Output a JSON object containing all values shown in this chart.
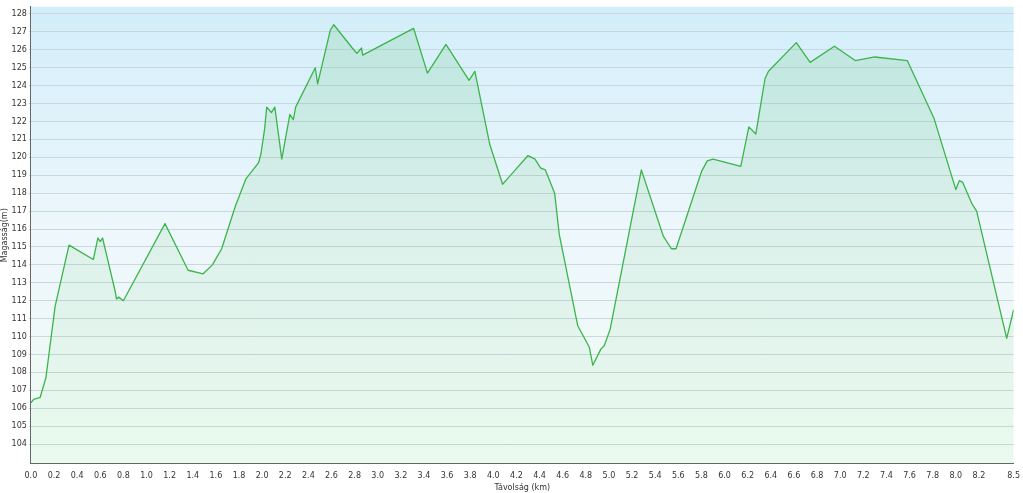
{
  "chart_data": {
    "type": "area",
    "xlabel": "Távolság (km)",
    "ylabel": "Magasság(m)",
    "xlim": [
      0,
      8.5
    ],
    "ylim": [
      102.9,
      128.4
    ],
    "xticks": [
      {
        "value": 0,
        "label": "0.0"
      },
      0.2,
      0.4,
      0.6,
      0.8,
      {
        "value": 1,
        "label": "1.0"
      },
      1.2,
      1.4,
      1.6,
      1.8,
      {
        "value": 2,
        "label": "2.0"
      },
      2.2,
      2.4,
      2.6,
      2.8,
      {
        "value": 3,
        "label": "3.0"
      },
      3.2,
      3.4,
      3.6,
      3.8,
      {
        "value": 4,
        "label": "4.0"
      },
      4.2,
      4.4,
      4.6,
      4.8,
      {
        "value": 5,
        "label": "5.0"
      },
      5.2,
      5.4,
      5.6,
      5.8,
      {
        "value": 6,
        "label": "6.0"
      },
      6.2,
      6.4,
      6.6,
      6.8,
      {
        "value": 7,
        "label": "7.0"
      },
      7.2,
      7.4,
      7.6,
      7.8,
      {
        "value": 8,
        "label": "8.0"
      },
      8.2,
      8.5
    ],
    "yticks": [
      104,
      105,
      106,
      107,
      108,
      109,
      110,
      111,
      112,
      113,
      114,
      115,
      116,
      117,
      118,
      119,
      120,
      121,
      122,
      123,
      124,
      125,
      126,
      127,
      128
    ],
    "grid": "y",
    "legend": false,
    "marker": "none",
    "x": [
      0,
      0.025,
      0.08,
      0.13,
      0.21,
      0.33,
      0.54,
      0.58,
      0.6,
      0.62,
      0.73,
      0.74,
      0.76,
      0.8,
      1.16,
      1.36,
      1.49,
      1.57,
      1.65,
      1.77,
      1.86,
      1.97,
      1.99,
      2.02,
      2.04,
      2.08,
      2.11,
      2.17,
      2.24,
      2.27,
      2.29,
      2.46,
      2.48,
      2.59,
      2.62,
      2.78,
      2.82,
      2.86,
      2.87,
      3.31,
      3.43,
      3.59,
      3.79,
      3.84,
      3.97,
      4.08,
      4.3,
      4.36,
      4.41,
      4.45,
      4.53,
      4.57,
      4.73,
      4.83,
      4.86,
      4.93,
      4.96,
      5.01,
      5.28,
      5.47,
      5.54,
      5.58,
      5.8,
      5.85,
      5.9,
      6.14,
      6.21,
      6.27,
      6.35,
      6.38,
      6.62,
      6.74,
      6.95,
      7.13,
      7.3,
      7.58,
      7.81,
      8.0,
      8.03,
      8.06,
      8.14,
      8.18,
      8.44,
      8.5
    ],
    "series": [
      {
        "color": "#3cb44b",
        "values": [
          106.3,
          106.5,
          106.6,
          107.7,
          111.7,
          115.1,
          114.3,
          115.5,
          115.3,
          115.5,
          112.5,
          112.1,
          112.2,
          112.0,
          116.3,
          113.7,
          113.5,
          114.0,
          114.9,
          117.3,
          118.8,
          119.7,
          120.2,
          121.5,
          122.8,
          122.5,
          122.8,
          119.9,
          122.4,
          122.1,
          122.8,
          125.0,
          124.1,
          127.1,
          127.4,
          126.1,
          125.8,
          126.1,
          125.7,
          127.2,
          124.7,
          126.3,
          124.3,
          124.8,
          120.7,
          118.5,
          120.1,
          119.9,
          119.4,
          119.3,
          118.0,
          115.7,
          110.6,
          109.4,
          108.4,
          109.3,
          109.5,
          110.4,
          119.3,
          115.6,
          114.9,
          114.9,
          119.2,
          119.8,
          119.9,
          119.5,
          121.7,
          121.3,
          124.4,
          124.8,
          126.4,
          125.3,
          126.2,
          125.4,
          125.6,
          125.4,
          122.2,
          118.2,
          118.7,
          118.6,
          117.4,
          117.0,
          109.9,
          111.5
        ]
      }
    ]
  }
}
